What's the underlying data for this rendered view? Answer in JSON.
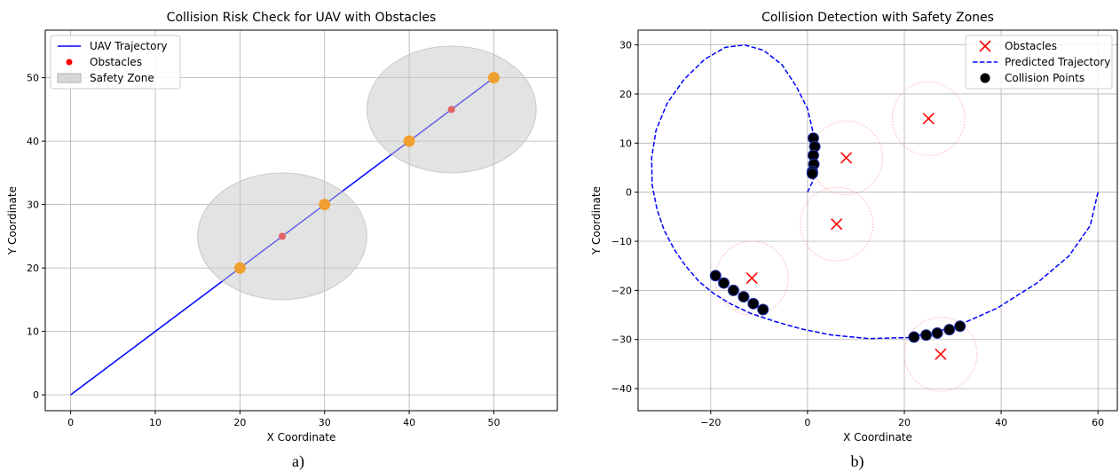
{
  "chart_data": [
    {
      "type": "line",
      "panel_caption": "a)",
      "title": "Collision Risk Check for UAV with Obstacles",
      "xlabel": "X Coordinate",
      "ylabel": "Y Coordinate",
      "xlim": [
        -3,
        57.5
      ],
      "ylim": [
        -2.5,
        57.5
      ],
      "xticks": [
        0,
        10,
        20,
        30,
        40,
        50
      ],
      "yticks": [
        0,
        10,
        20,
        30,
        40,
        50
      ],
      "grid": true,
      "legend_position": "top-left",
      "legend": [
        "UAV Trajectory",
        "Obstacles",
        "Safety Zone"
      ],
      "series": [
        {
          "name": "UAV Trajectory",
          "type": "line",
          "color": "#0000ff",
          "x": [
            0,
            50
          ],
          "y": [
            0,
            50
          ]
        },
        {
          "name": "Obstacles",
          "type": "scatter",
          "color": "#ff0000",
          "x": [
            25,
            45
          ],
          "y": [
            25,
            45
          ]
        },
        {
          "name": "Safety Zone",
          "type": "circle",
          "color": "#b0b0b0",
          "centers": [
            [
              25,
              25
            ],
            [
              45,
              45
            ]
          ],
          "radius": 10
        },
        {
          "name": "",
          "type": "scatter",
          "color": "#f0a030",
          "x": [
            20,
            30,
            40,
            50
          ],
          "y": [
            20,
            30,
            40,
            50
          ]
        }
      ]
    },
    {
      "type": "scatter",
      "panel_caption": "b)",
      "title": "Collision Detection with Safety Zones",
      "xlabel": "X Coordinate",
      "ylabel": "Y Coordinate",
      "xlim": [
        -35,
        64
      ],
      "ylim": [
        -44.5,
        33
      ],
      "xticks": [
        -20,
        0,
        20,
        40,
        60
      ],
      "xtick_labels": [
        "−20",
        "0",
        "20",
        "40",
        "60"
      ],
      "yticks": [
        -40,
        -30,
        -20,
        -10,
        0,
        10,
        20,
        30
      ],
      "ytick_labels": [
        "−40",
        "−30",
        "−20",
        "−10",
        "0",
        "10",
        "20",
        "30"
      ],
      "grid": true,
      "legend_position": "top-right",
      "legend": [
        "Obstacles",
        "Predicted Trajectory",
        "Collision Points"
      ],
      "series": [
        {
          "name": "Obstacles",
          "type": "scatter",
          "marker": "x",
          "color": "#ff0000",
          "x": [
            25,
            8,
            6,
            -11.5,
            27.5
          ],
          "y": [
            15,
            7,
            -6.5,
            -17.5,
            -33
          ]
        },
        {
          "name": "",
          "type": "circle",
          "color": "#ff9999",
          "centers": [
            [
              25,
              15
            ],
            [
              8,
              7
            ],
            [
              6,
              -6.5
            ],
            [
              -11.5,
              -17.5
            ],
            [
              27.5,
              -33
            ]
          ],
          "radius": 7.5
        },
        {
          "name": "Predicted Trajectory",
          "type": "line",
          "color": "#0000ff",
          "x": [
            60,
            58.4,
            54,
            47.4,
            39.2,
            30.3,
            21.2,
            12.6,
            5,
            -1.5,
            -6.8,
            -11.7,
            -15.8,
            -19.3,
            -22.4,
            -25.2,
            -27.5,
            -29.6,
            -31.1,
            -32.1,
            -32.2,
            -31.3,
            -29,
            -25.5,
            -21.2,
            -17,
            -13,
            -9.1,
            -5.3,
            -2.3,
            0,
            1.3,
            1.6,
            1.2,
            0
          ],
          "y": [
            0,
            -6.8,
            -13,
            -18.5,
            -23.6,
            -27.5,
            -29.6,
            -29.8,
            -29.1,
            -27.8,
            -26.3,
            -24.7,
            -22.8,
            -20.7,
            -18.2,
            -15,
            -11.7,
            -7.8,
            -3.5,
            1.5,
            7,
            12.6,
            18.1,
            23,
            27.1,
            29.5,
            30,
            28.9,
            26,
            21.5,
            17,
            11.5,
            6,
            2.5,
            0
          ]
        },
        {
          "name": "Collision Points",
          "type": "scatter",
          "color": "#000000",
          "x": [
            1.2,
            1.5,
            1.2,
            1.3,
            1.0,
            1.0,
            -19,
            -17.3,
            -15.3,
            -13.2,
            -11.2,
            -9.2,
            22.0,
            24.5,
            26.8,
            29.3,
            31.5
          ],
          "y": [
            11,
            9.3,
            7.5,
            5.7,
            4.2,
            3.8,
            -17,
            -18.5,
            -20,
            -21.3,
            -22.7,
            -23.9,
            -29.5,
            -29.1,
            -28.7,
            -28,
            -27.3
          ]
        }
      ]
    }
  ]
}
